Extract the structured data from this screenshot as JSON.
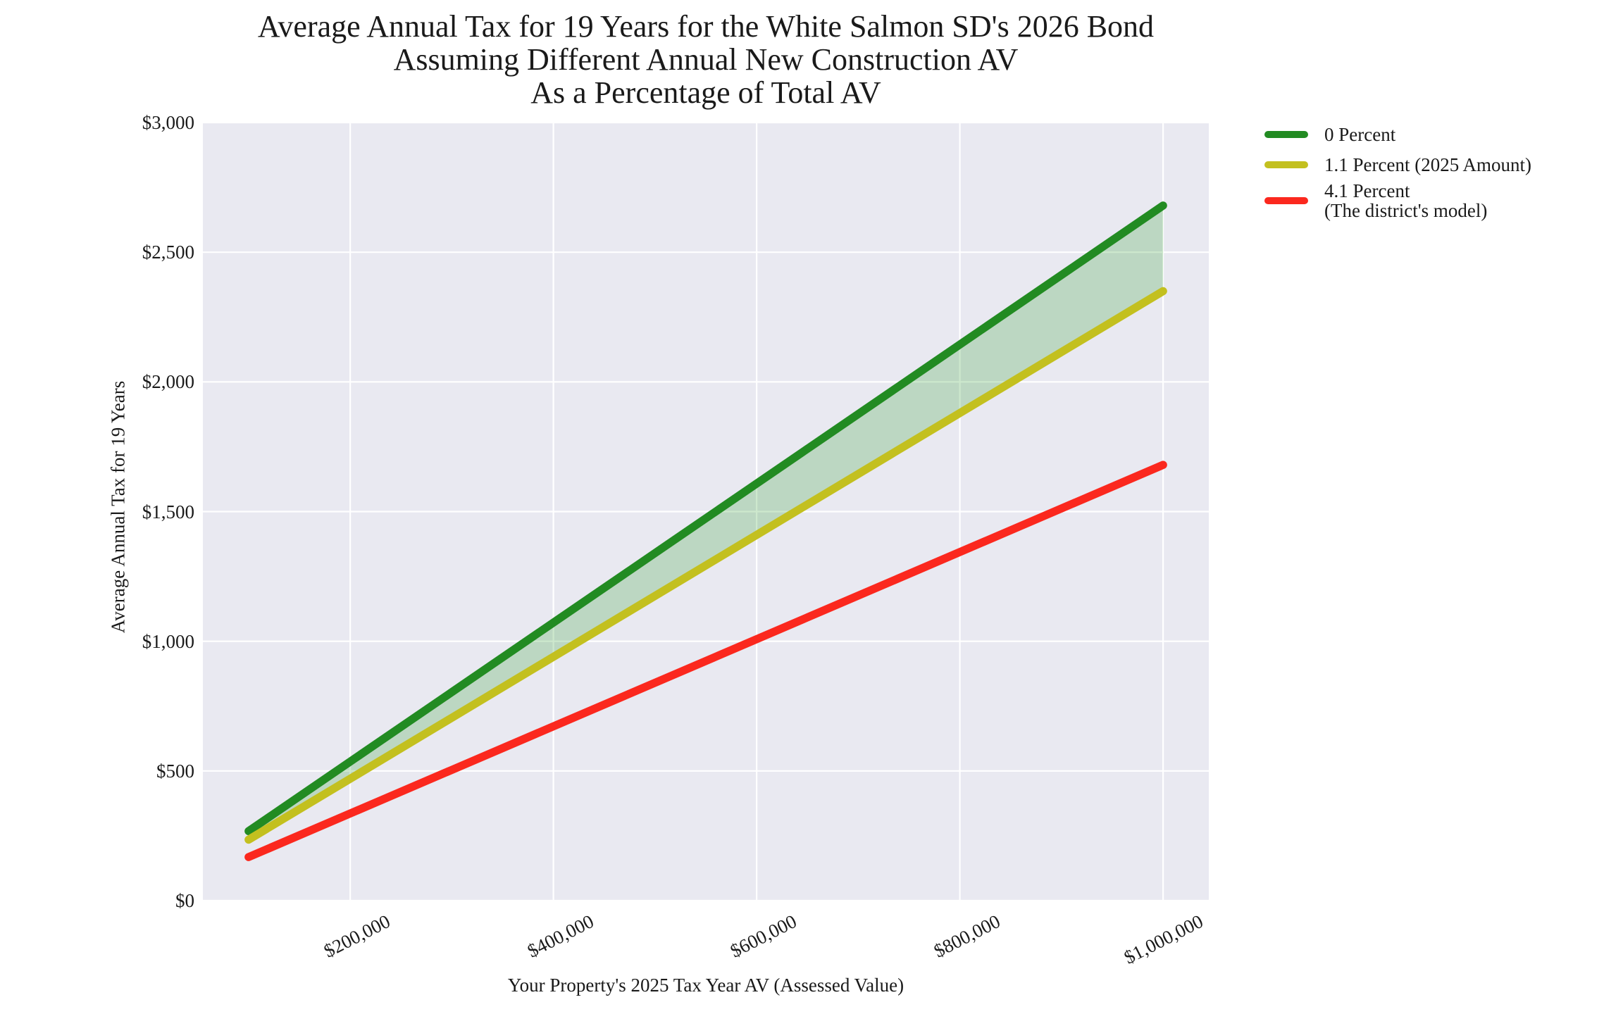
{
  "title": {
    "line1": "Average Annual Tax for 19 Years for the White Salmon SD's 2026 Bond",
    "line2": "Assuming Different Annual New Construction AV",
    "line3": "As a Percentage of Total AV"
  },
  "legend": {
    "items": [
      {
        "label": "0 Percent",
        "color": "#228b22"
      },
      {
        "label": "1.1 Percent (2025 Amount)",
        "color": "#c3c01f"
      },
      {
        "label": "4.1 Percent",
        "label2": "(The district's model)",
        "color": "#fb281e"
      }
    ]
  },
  "chart_data": {
    "type": "line",
    "title": "Average Annual Tax for 19 Years for the White Salmon SD's 2026 Bond Assuming Different Annual New Construction AV As a Percentage of Total AV",
    "xlabel": "Your Property's 2025 Tax Year AV (Assessed Value)",
    "ylabel": "Average Annual Tax for 19 Years",
    "xlim": [
      55000,
      1045000
    ],
    "ylim": [
      0,
      3000
    ],
    "grid": true,
    "legend_position": "upper-right-outside",
    "x_ticks": [
      200000,
      400000,
      600000,
      800000,
      1000000
    ],
    "x_tick_labels": [
      "$200,000",
      "$400,000",
      "$600,000",
      "$800,000",
      "$1,000,000"
    ],
    "y_ticks": [
      0,
      500,
      1000,
      1500,
      2000,
      2500,
      3000
    ],
    "y_tick_labels": [
      "$0",
      "$500",
      "$1,000",
      "$1,500",
      "$2,000",
      "$2,500",
      "$3,000"
    ],
    "x": [
      100000,
      1000000
    ],
    "series": [
      {
        "name": "0 Percent",
        "color": "#228b22",
        "values": [
          268,
          2680
        ]
      },
      {
        "name": "1.1 Percent (2025 Amount)",
        "color": "#c3c01f",
        "values": [
          235,
          2350
        ]
      },
      {
        "name": "4.1 Percent (The district's model)",
        "color": "#fb281e",
        "values": [
          168,
          1680
        ]
      }
    ],
    "band": {
      "between": [
        0,
        1
      ],
      "color": "rgba(44,160,44,0.24)"
    },
    "plot_background": "#e9e9f1",
    "grid_color": "#ffffff",
    "line_width": 11.5
  }
}
